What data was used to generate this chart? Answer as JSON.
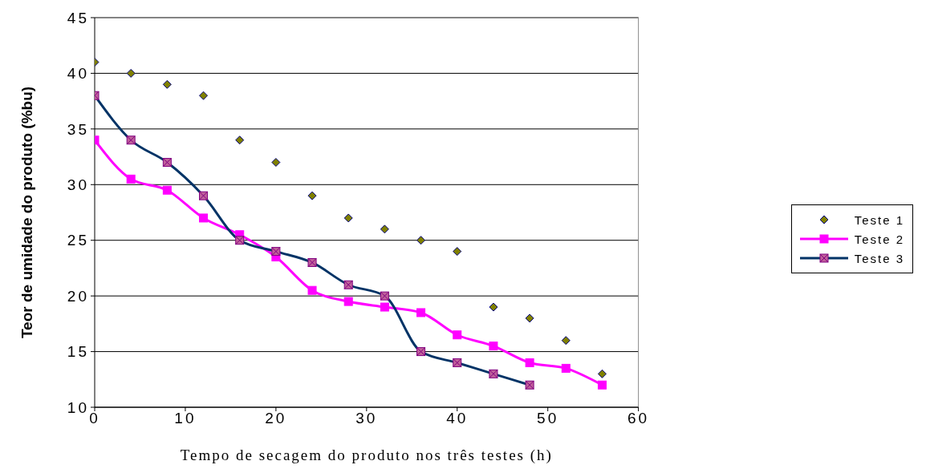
{
  "chart_data": {
    "type": "line",
    "xlabel": "Tempo de secagem do produto nos três testes (h)",
    "ylabel": "Teor de umidade do produto (%bu)",
    "xlim": [
      0,
      60
    ],
    "xticks": [
      0,
      10,
      20,
      30,
      40,
      50,
      60
    ],
    "ylim": [
      10,
      45
    ],
    "yticks": [
      10,
      15,
      20,
      25,
      30,
      35,
      40,
      45
    ],
    "grid": "y",
    "legend": "right",
    "series": [
      {
        "name": "Teste 1",
        "type": "scatter",
        "marker": "diamond",
        "color": "#808000",
        "x": [
          0,
          4,
          8,
          12,
          16,
          20,
          24,
          28,
          32,
          36,
          40,
          44,
          48,
          52,
          56
        ],
        "values": [
          41,
          40,
          39,
          38,
          34,
          32,
          29,
          27,
          26,
          25,
          24,
          19,
          18,
          16,
          13
        ]
      },
      {
        "name": "Teste 2",
        "marker": "square",
        "color": "#ff00ff",
        "x": [
          0,
          4,
          8,
          12,
          16,
          20,
          24,
          28,
          32,
          36,
          40,
          44,
          48,
          52,
          56
        ],
        "values": [
          34,
          30.5,
          29.5,
          27,
          25.5,
          23.5,
          20.5,
          19.5,
          19,
          18.5,
          16.5,
          15.5,
          14,
          13.5,
          12
        ]
      },
      {
        "name": "Teste 3",
        "marker": "square",
        "color": "#003366",
        "x": [
          0,
          4,
          8,
          12,
          16,
          20,
          24,
          28,
          32,
          36,
          40,
          44,
          48
        ],
        "values": [
          38,
          34,
          32,
          29,
          25,
          24,
          23,
          21,
          20,
          15,
          14,
          13,
          12
        ]
      }
    ]
  }
}
